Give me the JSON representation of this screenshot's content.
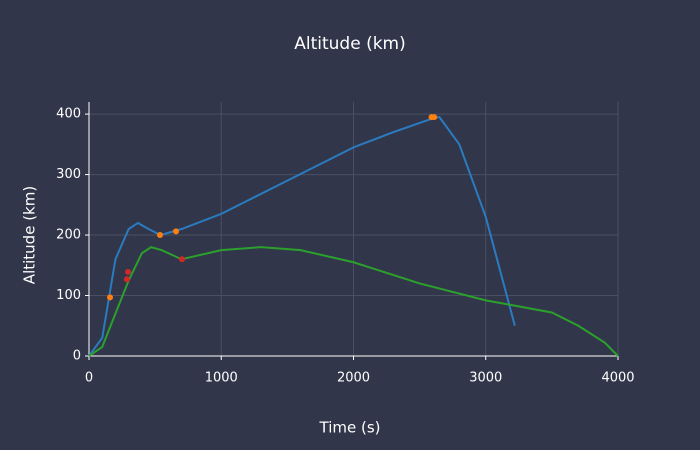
{
  "chart_data": {
    "type": "line",
    "title": "Altitude (km)",
    "x_label": "Time (s)",
    "y_label": "Altitude (km)",
    "series": [
      {
        "color": "#2b7bc0",
        "x": [
          0,
          100,
          200,
          300,
          370,
          450,
          540,
          700,
          1000,
          1500,
          2000,
          2300,
          2600,
          2650,
          2800,
          3000,
          3220
        ],
        "values": [
          0,
          30,
          160,
          210,
          220,
          210,
          200,
          210,
          235,
          290,
          345,
          370,
          393,
          395,
          350,
          230,
          50
        ]
      },
      {
        "color": "#2ca02c",
        "x": [
          0,
          100,
          200,
          300,
          400,
          470,
          550,
          700,
          1000,
          1300,
          1600,
          2000,
          2500,
          3000,
          3500,
          3700,
          3900,
          4000
        ],
        "values": [
          0,
          15,
          70,
          125,
          170,
          180,
          175,
          160,
          175,
          180,
          175,
          155,
          120,
          92,
          72,
          50,
          22,
          0
        ]
      }
    ],
    "points": [
      {
        "color": "#ff7f0e",
        "x": [
          159,
          537,
          658,
          2590,
          2610
        ],
        "values": [
          97,
          200,
          206,
          395,
          395
        ]
      },
      {
        "color": "#d62728",
        "x": [
          287,
          295,
          703
        ],
        "values": [
          127,
          139,
          160
        ]
      }
    ],
    "xlim": [
      0,
      4000
    ],
    "ylim": [
      0,
      420
    ],
    "xticks": [
      0,
      1000,
      2000,
      3000,
      4000
    ],
    "yticks": [
      0,
      100,
      200,
      300,
      400
    ],
    "grid": true
  }
}
